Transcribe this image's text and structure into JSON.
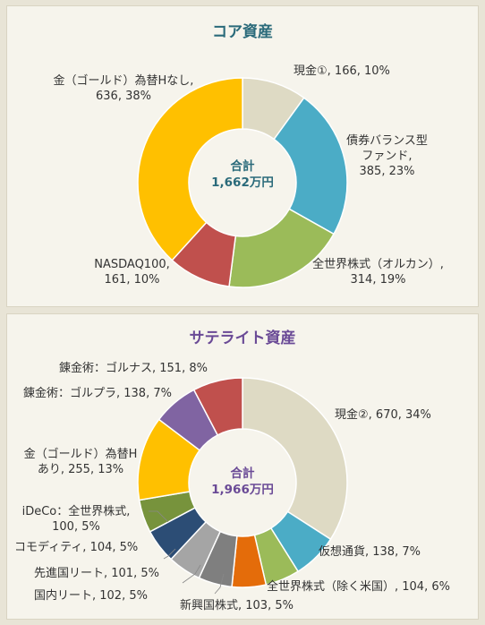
{
  "colors": {
    "core_title": "#2a6a7a",
    "sat_title": "#6a4a96"
  },
  "core": {
    "title": "コア資産",
    "center": {
      "label": "合計",
      "value": "1,662万円"
    },
    "labels": {
      "cash1": "現金①, 166, 10%",
      "bond_l1": "債券バランス型",
      "bond_l2": "ファンド,",
      "bond_l3": "385, 23%",
      "world_l1": "全世界株式（オルカン）,",
      "world_l2": "314, 19%",
      "nasdaq_l1": "NASDAQ100,",
      "nasdaq_l2": "161, 10%",
      "gold_l1": "金（ゴールド）為替Hなし,",
      "gold_l2": "636, 38%"
    }
  },
  "satellite": {
    "title": "サテライト資産",
    "center": {
      "label": "合計",
      "value": "1,966万円"
    },
    "labels": {
      "cash2": "現金②, 670, 34%",
      "crypto": "仮想通貨, 138, 7%",
      "world_ex": "全世界株式（除く米国）, 104, 6%",
      "emerging": "新興国株式, 103, 5%",
      "jreit": "国内リート, 102, 5%",
      "dreit": "先進国リート, 101, 5%",
      "commod": "コモディティ, 104, 5%",
      "ideco_l1": "iDeCo：全世界株式,",
      "ideco_l2": "100, 5%",
      "gold_l1": "金（ゴールド）為替H",
      "gold_l2": "あり, 255, 13%",
      "gulpra": "錬金術：ゴルプラ, 138, 7%",
      "gulnas": "錬金術：ゴルナス, 151, 8%"
    }
  },
  "chart_data": [
    {
      "type": "pie",
      "title": "コア資産",
      "categories": [
        "現金①",
        "債券バランス型ファンド",
        "全世界株式（オルカン）",
        "NASDAQ100",
        "金（ゴールド）為替Hなし"
      ],
      "values": [
        166,
        385,
        314,
        161,
        636
      ],
      "percents": [
        10,
        23,
        19,
        10,
        38
      ],
      "colors": [
        "#dedac4",
        "#4bacc6",
        "#9bbb59",
        "#c0504d",
        "#ffc000"
      ],
      "total_label": "1,662万円"
    },
    {
      "type": "pie",
      "title": "サテライト資産",
      "categories": [
        "現金②",
        "仮想通貨",
        "全世界株式（除く米国）",
        "新興国株式",
        "国内リート",
        "先進国リート",
        "コモディティ",
        "iDeCo：全世界株式",
        "金（ゴールド）為替Hあり",
        "錬金術：ゴルプラ",
        "錬金術：ゴルナス"
      ],
      "values": [
        670,
        138,
        104,
        103,
        102,
        101,
        104,
        100,
        255,
        138,
        151
      ],
      "percents": [
        34,
        7,
        6,
        5,
        5,
        5,
        5,
        5,
        13,
        7,
        8
      ],
      "colors": [
        "#dedac4",
        "#4bacc6",
        "#9bbb59",
        "#e46c0a",
        "#7f7f7f",
        "#a5a5a5",
        "#2c4d75",
        "#77933c",
        "#ffc000",
        "#8064a2",
        "#c0504d"
      ],
      "total_label": "1,966万円"
    }
  ]
}
